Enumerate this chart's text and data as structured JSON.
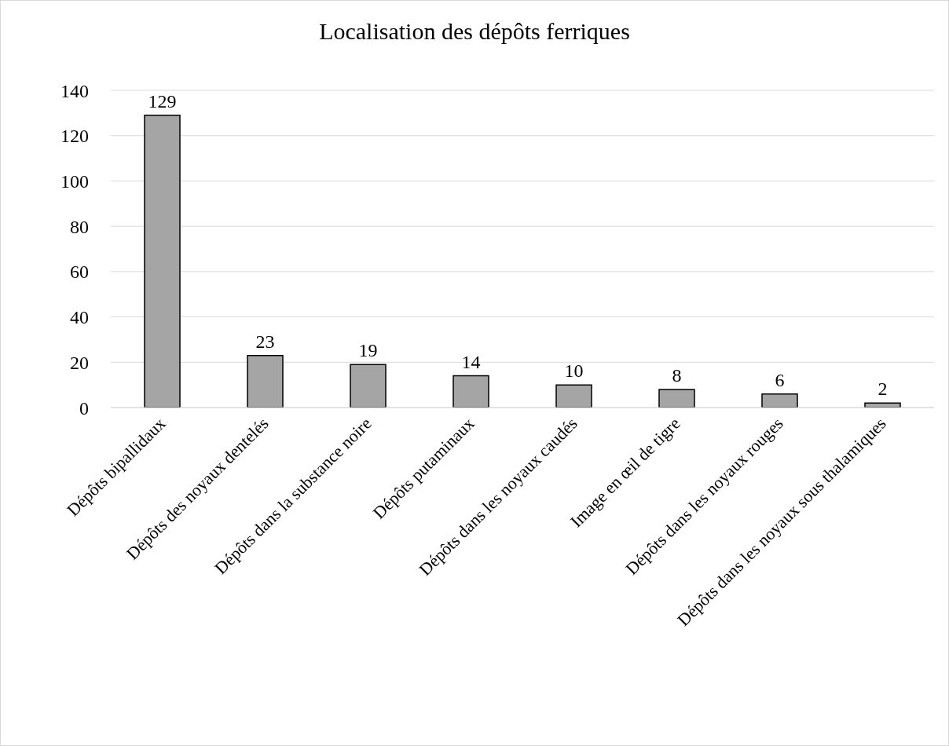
{
  "chart_data": {
    "type": "bar",
    "title": "Localisation des dépôts ferriques",
    "categories": [
      "Dépôts bipallidaux",
      "Dépôts des noyaux dentelés",
      "Dépôts dans la substance noire",
      "Dépôts putaminaux",
      "Dépôts dans les noyaux caudés",
      "Image en œil de tigre",
      "Dépôts dans les noyaux rouges",
      "Dépôts dans les noyaux sous thalamiques"
    ],
    "values": [
      129,
      23,
      19,
      14,
      10,
      8,
      6,
      2
    ],
    "color": "#a5a5a5",
    "ylim": [
      0,
      140
    ],
    "yticks": [
      0,
      20,
      40,
      60,
      80,
      100,
      120,
      140
    ],
    "grid": "y",
    "data_labels": true,
    "legend": false
  }
}
